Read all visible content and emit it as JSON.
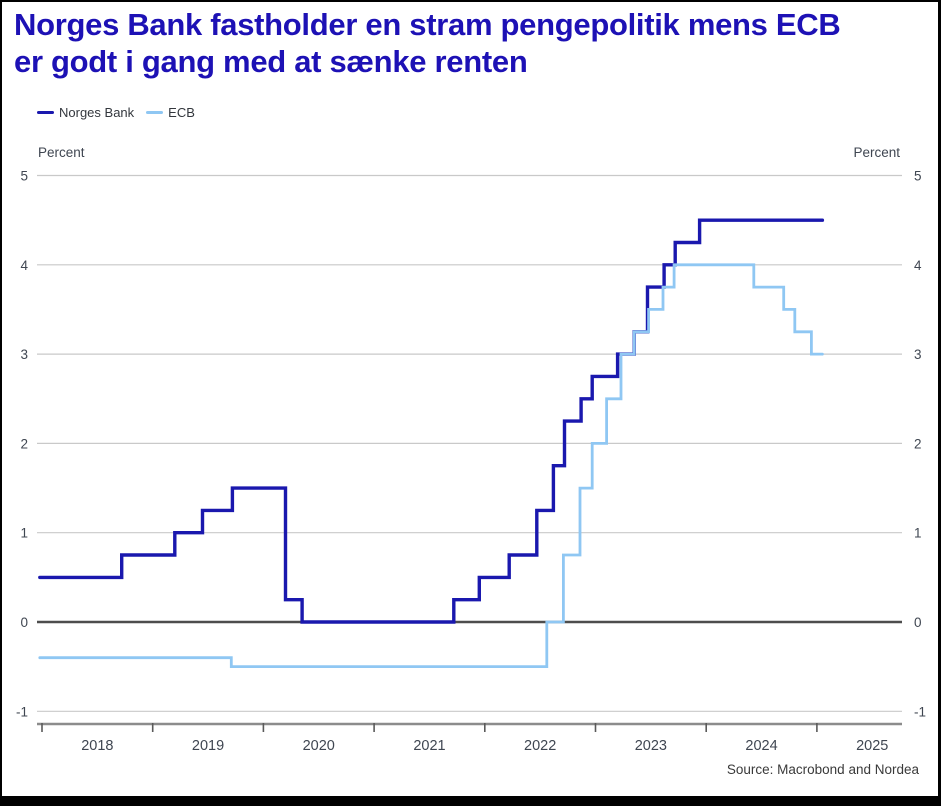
{
  "title": {
    "line1": "Norges Bank fastholder en stram pengepolitik mens ECB",
    "line2": "er godt i gang med at sænke renten"
  },
  "legend": {
    "items": [
      "Norges Bank",
      "ECB"
    ]
  },
  "axes": {
    "y_left_title": "Percent",
    "y_right_title": "Percent"
  },
  "source": "Source: Macrobond and Nordea",
  "colors": {
    "title": "#1d11b5",
    "norges_bank": "#1a18ae",
    "ecb": "#8fc7f3",
    "grid": "#c9c9c9",
    "zero_line": "#4d4d4d",
    "axis_line": "#8c8c8c",
    "tick": "#5a5a5a",
    "tick_text": "#3f4651",
    "border": "#000000"
  },
  "chart_data": {
    "type": "line",
    "step": true,
    "title": "Norges Bank fastholder en stram pengepolitik mens ECB er godt i gang med at sænke renten",
    "xlabel": "",
    "ylabel": "Percent",
    "ylabel_right": "Percent",
    "x_unit": "year (fractional)",
    "y_unit": "percent",
    "xlim": [
      2017.95,
      2025.77
    ],
    "ylim": [
      -1,
      5
    ],
    "yticks": [
      -1,
      0,
      1,
      2,
      3,
      4,
      5
    ],
    "x_year_ticks": [
      2018,
      2019,
      2020,
      2021,
      2022,
      2023,
      2024,
      2025
    ],
    "grid": true,
    "legend_position": "top-left",
    "series": [
      {
        "name": "Norges Bank",
        "color": "#1a18ae",
        "width": 3.4,
        "points": [
          [
            2017.98,
            0.5
          ],
          [
            2018.72,
            0.75
          ],
          [
            2019.2,
            1.0
          ],
          [
            2019.45,
            1.25
          ],
          [
            2019.72,
            1.5
          ],
          [
            2020.2,
            0.25
          ],
          [
            2020.35,
            0.0
          ],
          [
            2021.72,
            0.25
          ],
          [
            2021.95,
            0.5
          ],
          [
            2022.22,
            0.75
          ],
          [
            2022.47,
            1.25
          ],
          [
            2022.62,
            1.75
          ],
          [
            2022.72,
            2.25
          ],
          [
            2022.87,
            2.5
          ],
          [
            2022.97,
            2.75
          ],
          [
            2023.2,
            3.0
          ],
          [
            2023.35,
            3.25
          ],
          [
            2023.47,
            3.75
          ],
          [
            2023.62,
            4.0
          ],
          [
            2023.72,
            4.25
          ],
          [
            2023.94,
            4.5
          ],
          [
            2025.05,
            4.5
          ]
        ]
      },
      {
        "name": "ECB",
        "color": "#8fc7f3",
        "width": 2.8,
        "points": [
          [
            2017.98,
            -0.4
          ],
          [
            2019.71,
            -0.5
          ],
          [
            2022.56,
            0.0
          ],
          [
            2022.71,
            0.75
          ],
          [
            2022.86,
            1.5
          ],
          [
            2022.97,
            2.0
          ],
          [
            2023.1,
            2.5
          ],
          [
            2023.23,
            3.0
          ],
          [
            2023.35,
            3.25
          ],
          [
            2023.48,
            3.5
          ],
          [
            2023.61,
            3.75
          ],
          [
            2023.71,
            4.0
          ],
          [
            2024.43,
            3.75
          ],
          [
            2024.7,
            3.5
          ],
          [
            2024.8,
            3.25
          ],
          [
            2024.95,
            3.0
          ],
          [
            2025.05,
            3.0
          ]
        ]
      }
    ]
  }
}
